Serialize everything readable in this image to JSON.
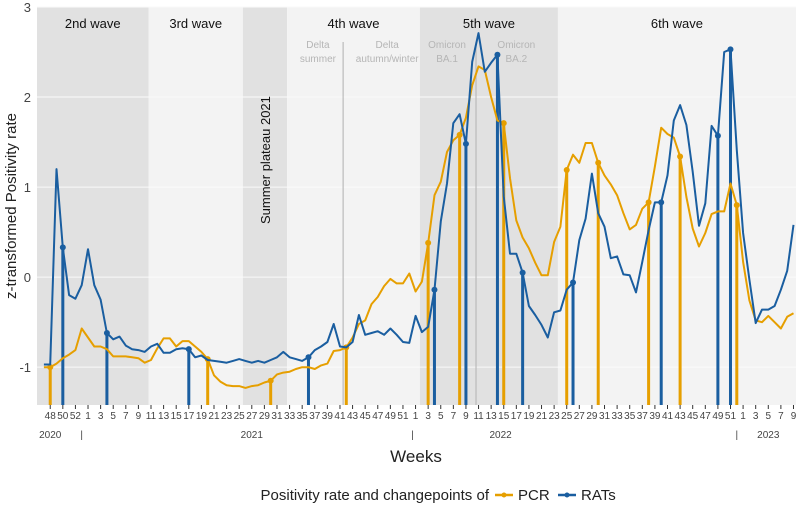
{
  "chart_data": {
    "type": "line",
    "title": "",
    "xlabel": "Weeks",
    "ylabel": "z-transformed Positivity rate",
    "ylim": [
      -1.42,
      3
    ],
    "xlim": [
      -2.1,
      118.4
    ],
    "y_ticks": [
      -1,
      0,
      1,
      2,
      3
    ],
    "x_tick_start": 0,
    "x_tick_step": 2,
    "x_tick_labels": [
      "48",
      "50",
      "52",
      "1",
      "3",
      "5",
      "7",
      "9",
      "11",
      "13",
      "15",
      "17",
      "19",
      "21",
      "23",
      "25",
      "27",
      "29",
      "31",
      "33",
      "35",
      "37",
      "39",
      "41",
      "43",
      "45",
      "47",
      "49",
      "51",
      "1",
      "3",
      "5",
      "7",
      "9",
      "11",
      "13",
      "15",
      "17",
      "19",
      "21",
      "23",
      "25",
      "27",
      "29",
      "31",
      "33",
      "35",
      "37",
      "39",
      "41",
      "43",
      "45",
      "47",
      "49",
      "51",
      "1",
      "3",
      "5",
      "7",
      "9"
    ],
    "year_labels": [
      {
        "label": "2020",
        "x": 0
      },
      {
        "label": "|",
        "x": 5
      },
      {
        "label": "2021",
        "x": 32
      },
      {
        "label": "|",
        "x": 57.5
      },
      {
        "label": "2022",
        "x": 71.5
      },
      {
        "label": "|",
        "x": 109
      },
      {
        "label": "2023",
        "x": 114
      }
    ],
    "regions": [
      {
        "label": "2nd wave",
        "from": -2.1,
        "to": 15.6,
        "shade": "dark"
      },
      {
        "label": "3rd wave",
        "from": 15.6,
        "to": 30.6,
        "shade": "light"
      },
      {
        "label": "Summer plateau 2021",
        "from": 30.6,
        "to": 37.6,
        "shade": "dark",
        "vertical": true
      },
      {
        "label": "4th wave",
        "from": 37.6,
        "to": 58.7,
        "shade": "light"
      },
      {
        "label": "5th wave",
        "from": 58.7,
        "to": 80.6,
        "shade": "dark"
      },
      {
        "label": "6th wave",
        "from": 80.6,
        "to": 118.4,
        "shade": "light"
      }
    ],
    "subperiods": [
      {
        "lines": [
          "Delta",
          "summer"
        ],
        "x": 42.5
      },
      {
        "lines": [
          "Delta",
          "autumn/winter"
        ],
        "x": 53.5
      },
      {
        "lines": [
          "Omicron",
          "BA.1"
        ],
        "x": 63
      },
      {
        "lines": [
          "Omicron",
          "BA.2"
        ],
        "x": 74
      }
    ],
    "subperiod_dividers": [
      46.5,
      67.6
    ],
    "x_start": -1,
    "series": [
      {
        "name": "PCR",
        "color": "#E69F00",
        "values": [
          -1.0,
          -1.0,
          -0.96,
          -0.9,
          -0.86,
          -0.81,
          -0.57,
          -0.67,
          -0.77,
          -0.77,
          -0.8,
          -0.88,
          -0.88,
          -0.88,
          -0.89,
          -0.9,
          -0.95,
          -0.92,
          -0.79,
          -0.68,
          -0.68,
          -0.77,
          -0.71,
          -0.71,
          -0.77,
          -0.83,
          -0.91,
          -1.09,
          -1.16,
          -1.2,
          -1.21,
          -1.21,
          -1.23,
          -1.21,
          -1.2,
          -1.17,
          -1.15,
          -1.08,
          -1.06,
          -1.05,
          -1.02,
          -1.0,
          -1.0,
          -1.02,
          -0.98,
          -0.96,
          -0.82,
          -0.81,
          -0.78,
          -0.67,
          -0.52,
          -0.48,
          -0.3,
          -0.22,
          -0.1,
          -0.02,
          -0.07,
          -0.07,
          0.04,
          -0.16,
          -0.05,
          0.38,
          0.91,
          1.06,
          1.39,
          1.52,
          1.58,
          1.77,
          2.13,
          2.34,
          2.3,
          2.0,
          1.74,
          1.71,
          1.1,
          0.63,
          0.44,
          0.32,
          0.16,
          0.02,
          0.02,
          0.39,
          0.56,
          1.19,
          1.36,
          1.27,
          1.49,
          1.49,
          1.27,
          1.13,
          1.03,
          0.91,
          0.71,
          0.53,
          0.58,
          0.76,
          0.83,
          1.23,
          1.66,
          1.59,
          1.55,
          1.34,
          0.89,
          0.54,
          0.34,
          0.49,
          0.7,
          0.73,
          0.73,
          1.04,
          0.8,
          0.17,
          -0.26,
          -0.48,
          -0.5,
          -0.43,
          -0.5,
          -0.57,
          -0.44,
          -0.4
        ],
        "changepoints": [
          0,
          25,
          35,
          47,
          60,
          65,
          72,
          82,
          87,
          95,
          100,
          109
        ]
      },
      {
        "name": "RATs",
        "color": "#1A5EA0",
        "values": [
          -0.97,
          -0.97,
          1.2,
          0.33,
          -0.2,
          -0.24,
          -0.09,
          0.31,
          -0.09,
          -0.25,
          -0.62,
          -0.69,
          -0.66,
          -0.76,
          -0.8,
          -0.81,
          -0.83,
          -0.77,
          -0.74,
          -0.84,
          -0.84,
          -0.8,
          -0.79,
          -0.8,
          -0.89,
          -0.87,
          -0.92,
          -0.93,
          -0.94,
          -0.95,
          -0.93,
          -0.91,
          -0.93,
          -0.95,
          -0.93,
          -0.95,
          -0.92,
          -0.89,
          -0.83,
          -0.89,
          -0.91,
          -0.93,
          -0.89,
          -0.81,
          -0.77,
          -0.72,
          -0.52,
          -0.77,
          -0.78,
          -0.72,
          -0.42,
          -0.64,
          -0.62,
          -0.6,
          -0.64,
          -0.57,
          -0.64,
          -0.72,
          -0.73,
          -0.43,
          -0.61,
          -0.55,
          -0.14,
          0.62,
          1.04,
          1.71,
          1.81,
          1.48,
          2.39,
          2.71,
          2.28,
          2.38,
          2.47,
          0.9,
          0.26,
          0.26,
          0.05,
          -0.32,
          -0.42,
          -0.53,
          -0.67,
          -0.39,
          -0.37,
          -0.14,
          -0.06,
          0.41,
          0.65,
          1.15,
          0.71,
          0.56,
          0.21,
          0.23,
          0.03,
          0.02,
          -0.17,
          0.17,
          0.52,
          0.83,
          0.83,
          1.13,
          1.74,
          1.91,
          1.69,
          1.17,
          0.57,
          0.82,
          1.68,
          1.57,
          2.5,
          2.53,
          1.41,
          0.49,
          -0.03,
          -0.51,
          -0.36,
          -0.36,
          -0.32,
          -0.14,
          0.07,
          0.58
        ],
        "changepoints": [
          2,
          9,
          22,
          41,
          61,
          66,
          71,
          75,
          83,
          97,
          106,
          108
        ]
      }
    ],
    "legend": {
      "title": "Positivity rate and changepoints of",
      "position": "bottom"
    }
  }
}
